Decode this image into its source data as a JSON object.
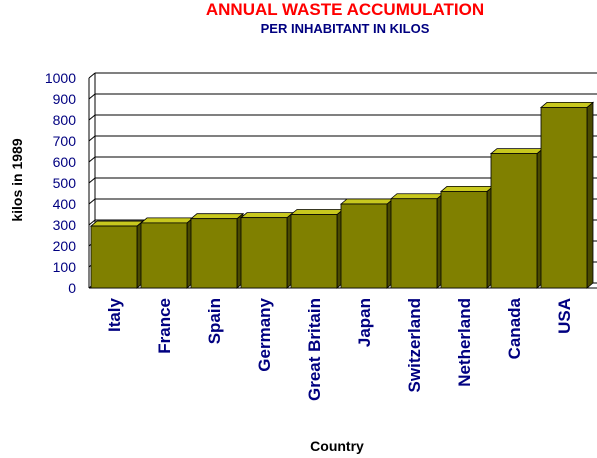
{
  "chart_data": {
    "type": "bar",
    "title": "ANNUAL WASTE ACCUMULATION",
    "subtitle": "PER INHABITANT IN KILOS",
    "xlabel": "Country",
    "ylabel": "kilos in 1989",
    "categories": [
      "Italy",
      "France",
      "Spain",
      "Germany",
      "Great Britain",
      "Japan",
      "Switzerland",
      "Netherland",
      "Canada",
      "USA"
    ],
    "values": [
      295,
      310,
      330,
      335,
      350,
      400,
      425,
      460,
      640,
      860
    ],
    "ylim": [
      0,
      1000
    ],
    "yticks": [
      "0",
      "100",
      "200",
      "300",
      "400",
      "500",
      "600",
      "700",
      "800",
      "900",
      "1000"
    ],
    "grid": true,
    "legend": "none"
  },
  "colors": {
    "title": "#ff0000",
    "subtitle": "#000080",
    "ticks": "#000080",
    "bar_front": "#808000",
    "bar_top": "#c8c81e",
    "bar_side": "#4a4a00",
    "grid": "#000000"
  }
}
